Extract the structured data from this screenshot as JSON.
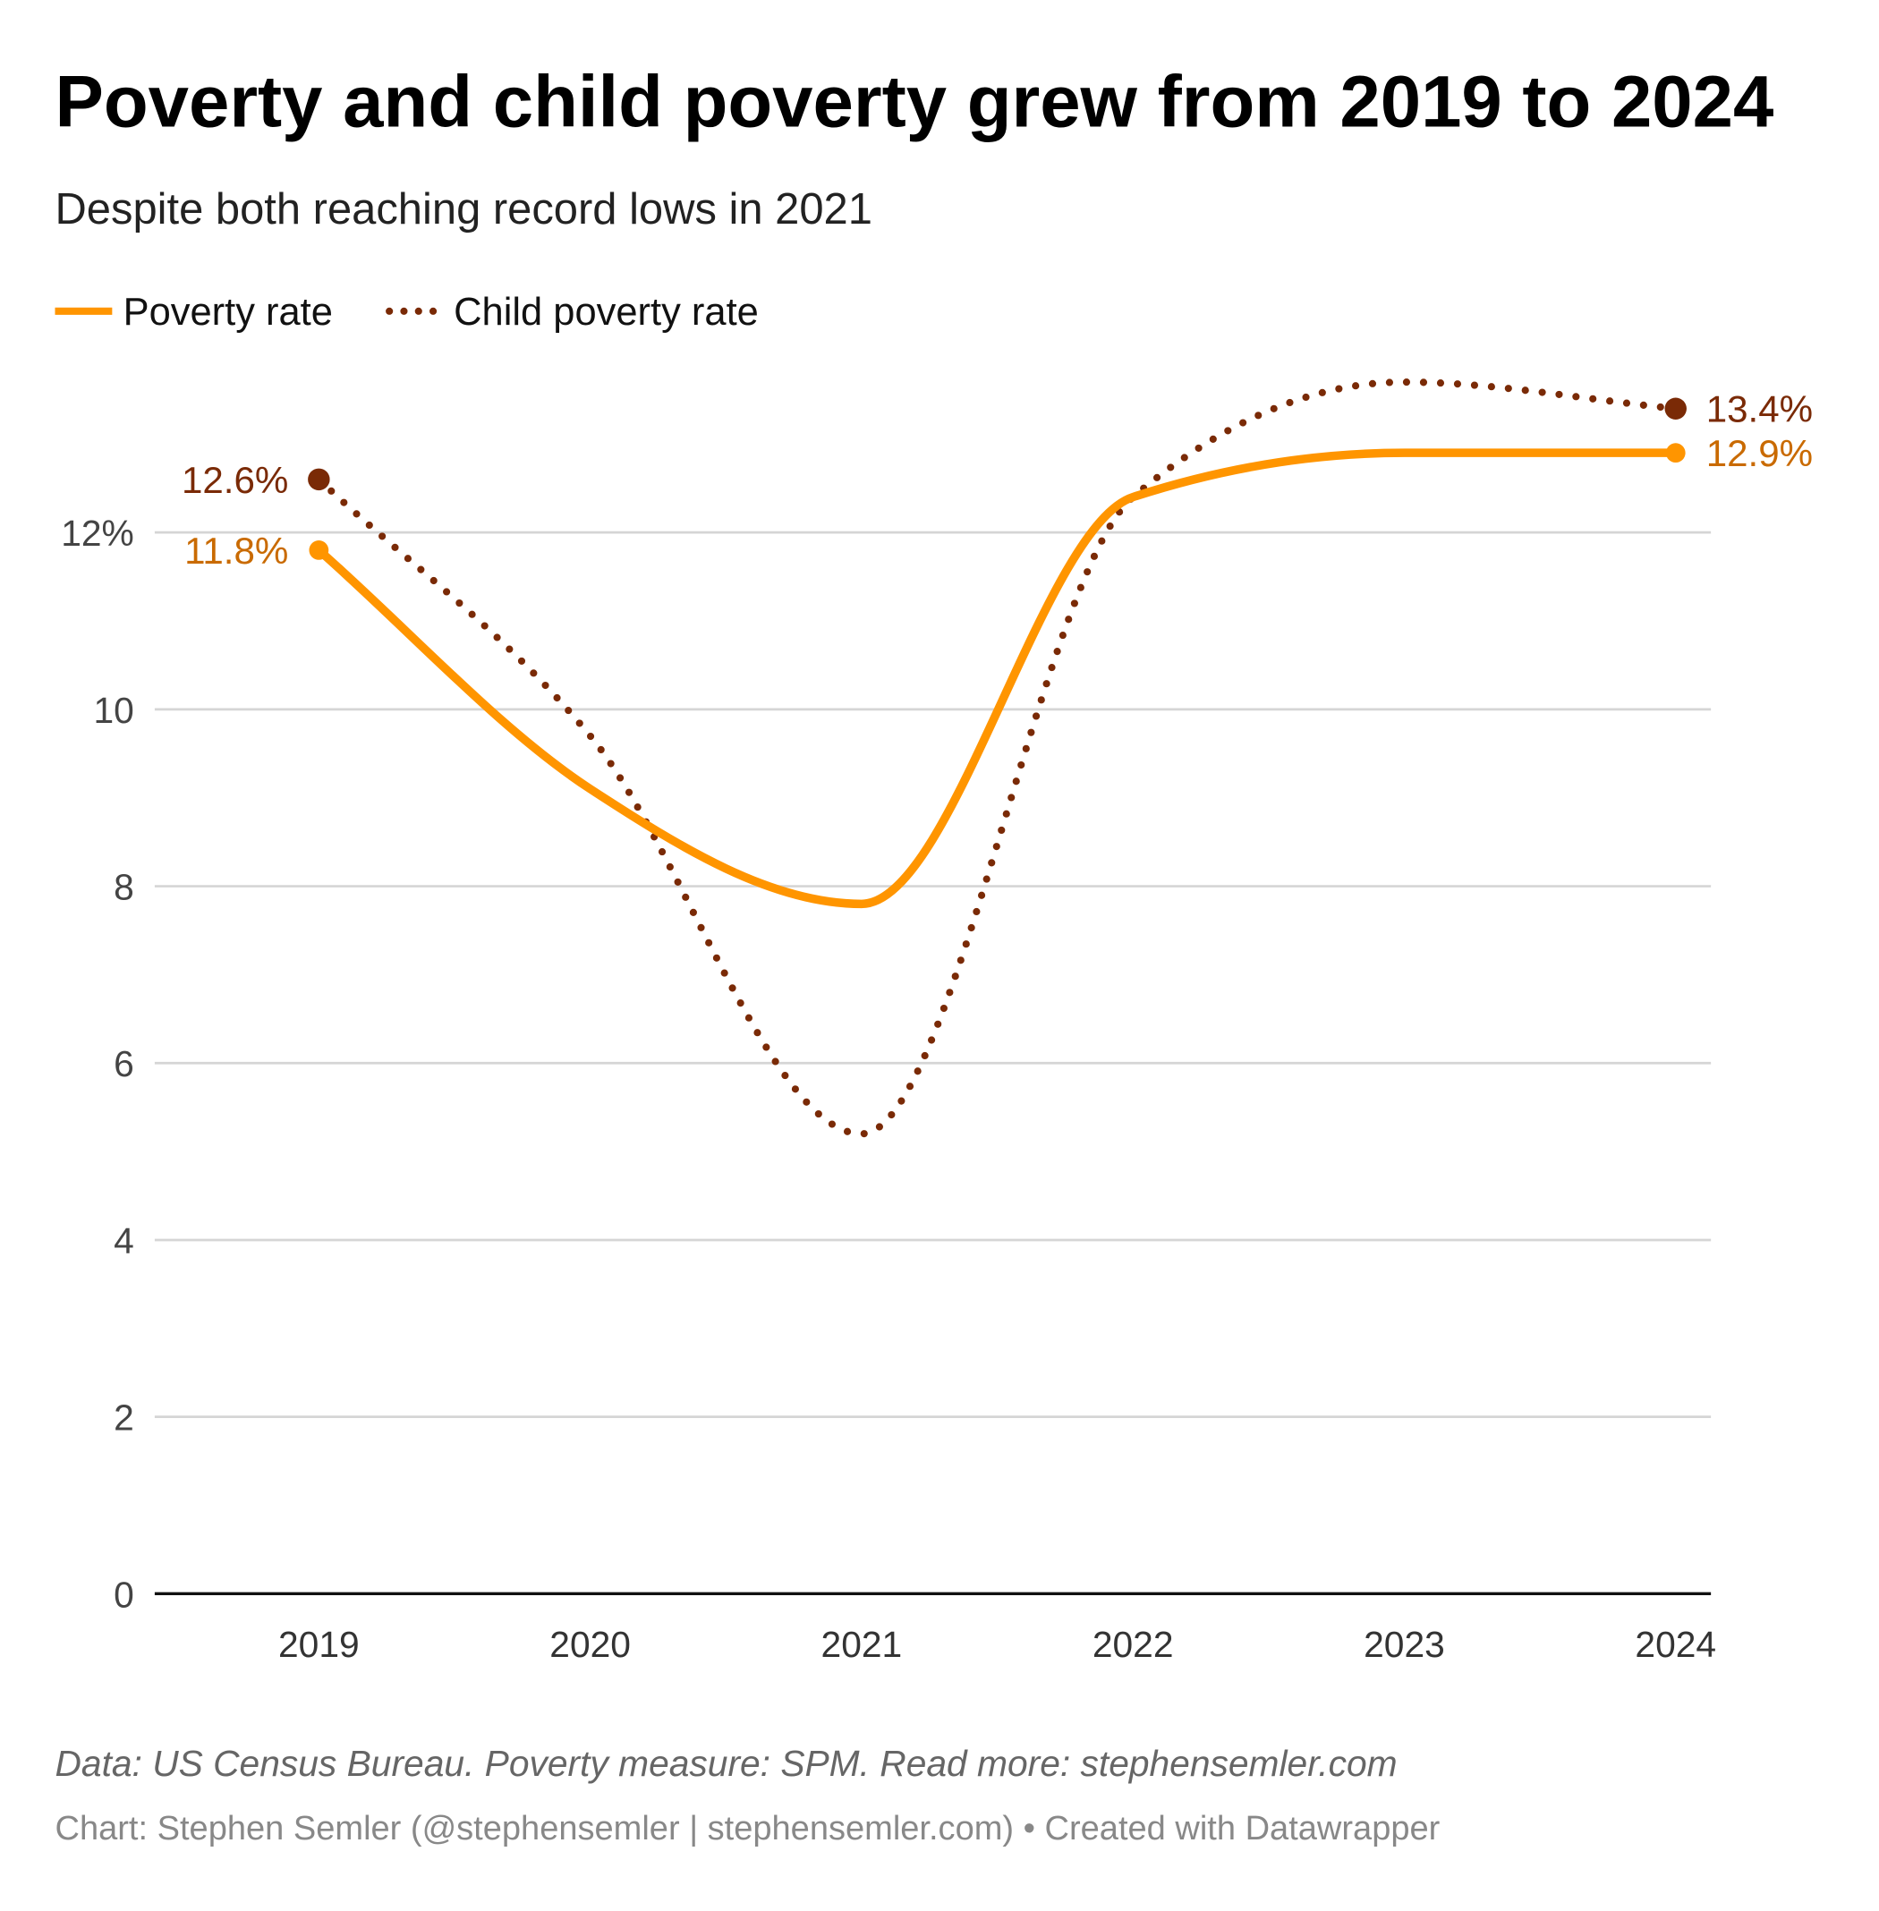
{
  "chart_data": {
    "type": "line",
    "title": "Poverty and child poverty grew from 2019 to 2024",
    "subtitle": "Despite both reaching record lows in 2021",
    "x": [
      "2019",
      "2020",
      "2021",
      "2022",
      "2023",
      "2024"
    ],
    "series": [
      {
        "name": "Poverty rate",
        "values": [
          11.8,
          9.1,
          7.8,
          12.4,
          12.9,
          12.9
        ],
        "color": "#ff9500",
        "style": "solid",
        "labels": {
          "first": "11.8%",
          "last": "12.9%"
        },
        "label_color": "#c96a00"
      },
      {
        "name": "Child poverty rate",
        "values": [
          12.6,
          9.7,
          5.2,
          12.4,
          13.7,
          13.4
        ],
        "color": "#7a2a06",
        "style": "dotted",
        "labels": {
          "first": "12.6%",
          "last": "13.4%"
        },
        "label_color": "#7a2a06"
      }
    ],
    "ylim": [
      0,
      14
    ],
    "yticks": [
      {
        "v": 0,
        "t": "0"
      },
      {
        "v": 2,
        "t": "2"
      },
      {
        "v": 4,
        "t": "4"
      },
      {
        "v": 6,
        "t": "6"
      },
      {
        "v": 8,
        "t": "8"
      },
      {
        "v": 10,
        "t": "10"
      },
      {
        "v": 12,
        "t": "12%"
      }
    ],
    "grid": true,
    "legend_position": "top-left"
  },
  "footer": {
    "note": "Data: US Census Bureau. Poverty measure: SPM. Read more: stephensemler.com",
    "credit": "Chart: Stephen Semler (@stephensemler | stephensemler.com) • Created with Datawrapper"
  }
}
